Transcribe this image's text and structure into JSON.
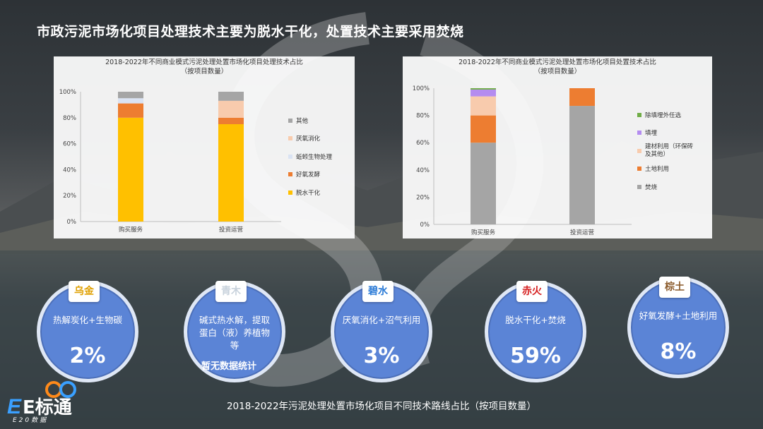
{
  "title": "市政污泥市场化项目处理技术主要为脱水干化，处置技术主要采用焚烧",
  "footer": "2018-2022年污泥处理处置市场化项目不同技术路线占比（按项目数量）",
  "logo": {
    "name": "E标通",
    "sub": "E20数据"
  },
  "chart_data": [
    {
      "type": "bar",
      "stacked": true,
      "title": "2018-2022年不同商业模式污泥处理处置市场化项目处理技术占比",
      "subtitle": "（按项目数量）",
      "categories": [
        "购买服务",
        "投资运营"
      ],
      "yticks": [
        "0%",
        "20%",
        "40%",
        "60%",
        "80%",
        "100%"
      ],
      "ylim": [
        0,
        100
      ],
      "grid": false,
      "legend_position": "right",
      "series": [
        {
          "name": "脱水干化",
          "color": "#ffc000",
          "values": [
            80,
            75
          ]
        },
        {
          "name": "好氧发酵",
          "color": "#ed7d31",
          "values": [
            11,
            5
          ]
        },
        {
          "name": "蚯蚓生物处理",
          "color": "#dae3f3",
          "values": [
            4,
            0
          ]
        },
        {
          "name": "厌氧消化",
          "color": "#f8cbad",
          "values": [
            0,
            13
          ]
        },
        {
          "name": "其他",
          "color": "#a5a5a5",
          "values": [
            5,
            7
          ]
        }
      ]
    },
    {
      "type": "bar",
      "stacked": true,
      "title": "2018-2022年不同商业模式污泥处理处置市场化项目处置技术占比",
      "subtitle": "（按项目数量）",
      "categories": [
        "购买服务",
        "投资运营"
      ],
      "yticks": [
        "0%",
        "20%",
        "40%",
        "60%",
        "80%",
        "100%"
      ],
      "ylim": [
        0,
        100
      ],
      "grid": false,
      "legend_position": "right",
      "series": [
        {
          "name": "焚烧",
          "color": "#a5a5a5",
          "values": [
            60,
            87
          ]
        },
        {
          "name": "土地利用",
          "color": "#ed7d31",
          "values": [
            20,
            13
          ]
        },
        {
          "name": "建材利用（环保砖及其他）",
          "color": "#f8cbad",
          "values": [
            14,
            0
          ]
        },
        {
          "name": "填埋",
          "color": "#b48cf0",
          "values": [
            5,
            0
          ]
        },
        {
          "name": "除填埋外任选",
          "color": "#70ad47",
          "values": [
            1,
            0
          ]
        }
      ]
    }
  ],
  "routes": [
    {
      "badge": "乌金",
      "badge_color": "#e0a000",
      "text": "热解炭化+生物碳",
      "value": "2%"
    },
    {
      "badge": "青木",
      "badge_color": "#c8d2dc",
      "text": "碱式热水解，提取蛋白（液）养植物等",
      "value": ""
    },
    {
      "badge": "碧水",
      "badge_color": "#2a7ad6",
      "text": "厌氧消化+沼气利用",
      "value": "3%"
    },
    {
      "badge": "赤火",
      "badge_color": "#d62020",
      "text": "脱水干化+焚烧",
      "value": "59%"
    },
    {
      "badge": "棕土",
      "badge_color": "#8a5a2a",
      "text": "好氧发酵+土地利用",
      "value": "8%"
    }
  ],
  "nodata_note": "暂无数据统计"
}
